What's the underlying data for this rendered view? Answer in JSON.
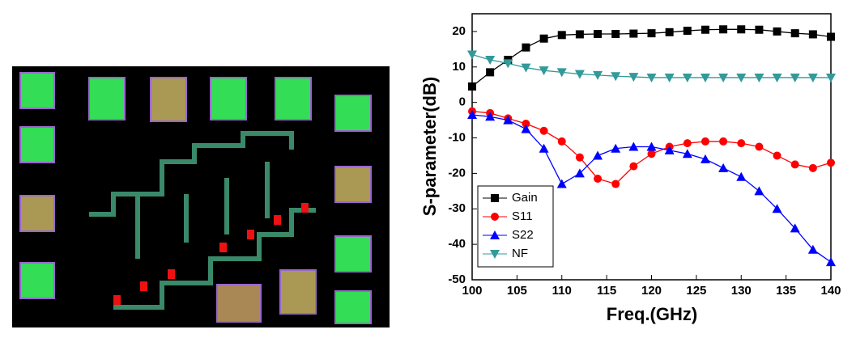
{
  "chart_data": {
    "type": "line",
    "xlabel": "Freq.(GHz)",
    "ylabel": "S-parameter(dB)",
    "x": [
      100,
      102,
      104,
      106,
      108,
      110,
      112,
      114,
      116,
      118,
      120,
      122,
      124,
      126,
      128,
      130,
      132,
      134,
      136,
      138,
      140
    ],
    "series": [
      {
        "name": "Gain",
        "color": "#000000",
        "marker": "square",
        "values": [
          4.5,
          8.5,
          12,
          15.5,
          18,
          19,
          19.2,
          19.3,
          19.3,
          19.4,
          19.5,
          19.8,
          20.2,
          20.5,
          20.6,
          20.6,
          20.5,
          20,
          19.5,
          19.2,
          18.5
        ]
      },
      {
        "name": "S11",
        "color": "#ff0000",
        "marker": "circle",
        "values": [
          -2.5,
          -3,
          -4.5,
          -6,
          -8,
          -11,
          -15.5,
          -21.5,
          -23,
          -18,
          -14.5,
          -12.5,
          -11.5,
          -11,
          -11,
          -11.5,
          -12.5,
          -15,
          -17.5,
          -18.5,
          -17
        ]
      },
      {
        "name": "S22",
        "color": "#0000ff",
        "marker": "triangle-up",
        "values": [
          -3.5,
          -4,
          -5,
          -7.5,
          -13,
          -23,
          -20,
          -15,
          -13,
          -12.5,
          -12.5,
          -13.5,
          -14.5,
          -16,
          -18.5,
          -21,
          -25,
          -30,
          -35.5,
          -41.5,
          -45
        ]
      },
      {
        "name": "NF",
        "color": "#339999",
        "marker": "triangle-down",
        "values": [
          13.5,
          12,
          11,
          9.8,
          9,
          8.5,
          8,
          7.7,
          7.4,
          7.2,
          7,
          7,
          7,
          7,
          7,
          7,
          7,
          7,
          7,
          7,
          7
        ]
      }
    ],
    "xlim": [
      100,
      140
    ],
    "xticks": [
      100,
      105,
      110,
      115,
      120,
      125,
      130,
      135,
      140
    ],
    "ylim": [
      -50,
      25
    ],
    "yticks": [
      -50,
      -40,
      -30,
      -20,
      -10,
      0,
      10,
      20
    ],
    "legend": "lower left"
  }
}
